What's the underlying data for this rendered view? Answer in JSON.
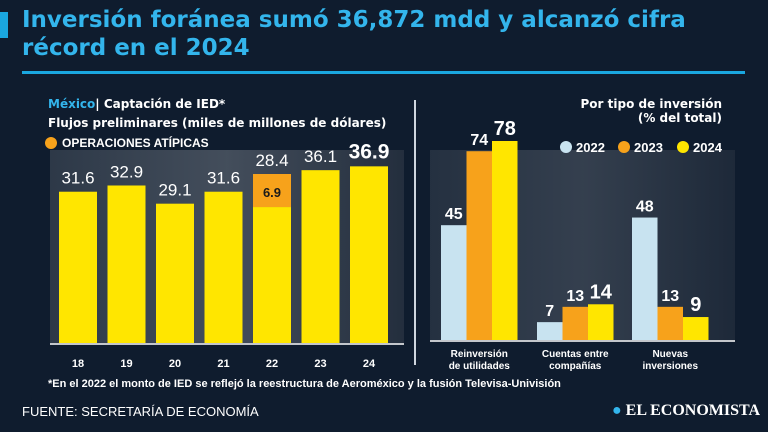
{
  "title": "Inversión foránea sumó 36,872 mdd y alcanzó cifra récord en el 2024",
  "left_header": {
    "country": "México",
    "separator": "|",
    "subtitle": "Captación de IED*",
    "units": "Flujos preliminares (miles de millones de dólares)",
    "legend": "OPERACIONES ATÍPICAS"
  },
  "right_header": {
    "line1": "Por tipo de inversión",
    "line2": "(% del total)"
  },
  "footnote": "*En el 2022 el monto de IED se reflejó la reestructura de Aeroméxico y la fusión Televisa-Univisión",
  "source": "FUENTE:  SECRETARÍA DE ECONOMÍA",
  "logo": "EL ECONOMISTA",
  "colors": {
    "yellow": "#ffe600",
    "orange": "#f7a21b",
    "light_blue": "#c8e3f0",
    "accent": "#1aa7e0",
    "background": "#0f1c2e"
  },
  "chart_data": [
    {
      "type": "bar",
      "stacked": true,
      "categories": [
        "18",
        "19",
        "20",
        "21",
        "22",
        "23",
        "24"
      ],
      "series": [
        {
          "name": "",
          "values": [
            31.6,
            32.9,
            29.1,
            31.6,
            28.4,
            36.1,
            36.9
          ],
          "color": "#ffe600"
        },
        {
          "name": "OPERACIONES ATÍPICAS",
          "values": [
            0,
            0,
            0,
            0,
            6.9,
            0,
            0
          ],
          "color": "#f7a21b"
        }
      ],
      "labels": [
        "31.6",
        "32.9",
        "29.1",
        "31.6",
        "28.4",
        "36.1",
        "36.9"
      ],
      "stack_label": "6.9",
      "ylim": [
        0,
        38
      ]
    },
    {
      "type": "bar",
      "categories": [
        [
          "Reinversión",
          "de utilidades"
        ],
        [
          "Cuentas entre",
          "compañías"
        ],
        [
          "Nuevas",
          "inversiones"
        ]
      ],
      "series": [
        {
          "name": "2022",
          "values": [
            45,
            7,
            48
          ],
          "color": "#c8e3f0"
        },
        {
          "name": "2023",
          "values": [
            74,
            13,
            13
          ],
          "color": "#f7a21b"
        },
        {
          "name": "2024",
          "values": [
            78,
            14,
            9
          ],
          "color": "#ffe600"
        }
      ],
      "legend": "top-right",
      "ylim": [
        0,
        80
      ]
    }
  ]
}
